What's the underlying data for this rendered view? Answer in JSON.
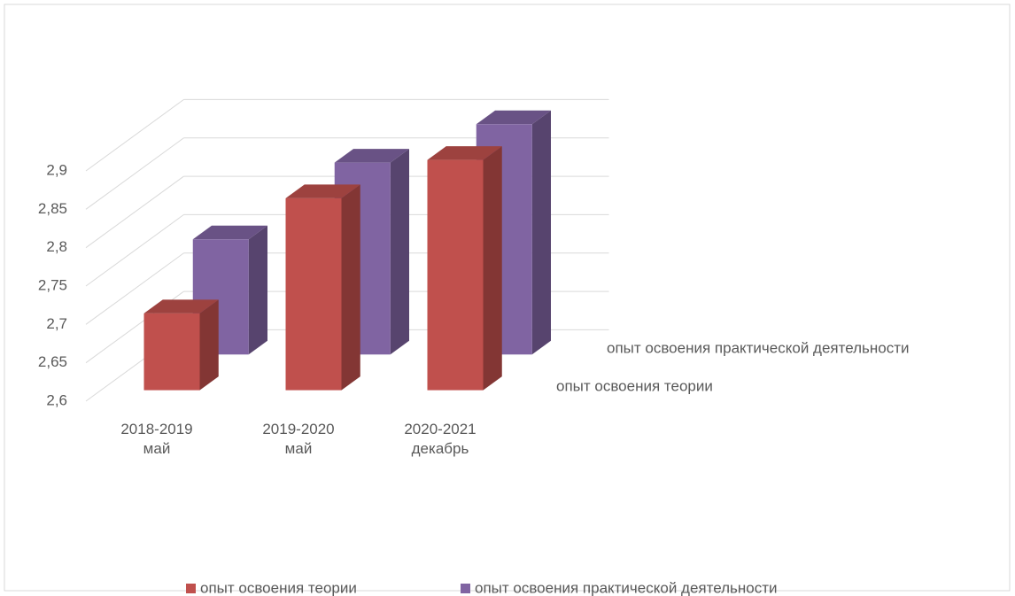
{
  "chart_data": {
    "type": "bar3d",
    "categories": [
      "2018-2019 май",
      "2019-2020 май",
      "2020-2021 декабрь"
    ],
    "series": [
      {
        "name": "опыт освоения теории",
        "color": "#c0504d",
        "values": [
          2.7,
          2.85,
          2.9
        ]
      },
      {
        "name": "опыт освоения практической деятельности",
        "color": "#8064a2",
        "values": [
          2.75,
          2.85,
          2.9
        ]
      }
    ],
    "ylim": [
      2.6,
      2.9
    ],
    "yticks": [
      {
        "value": 2.6,
        "label": "2,6"
      },
      {
        "value": 2.65,
        "label": "2,65"
      },
      {
        "value": 2.7,
        "label": "2,7"
      },
      {
        "value": 2.75,
        "label": "2,75"
      },
      {
        "value": 2.8,
        "label": "2,8"
      },
      {
        "value": 2.85,
        "label": "2,85"
      },
      {
        "value": 2.9,
        "label": "2,9"
      }
    ],
    "grid": true,
    "legend": "bottom"
  }
}
